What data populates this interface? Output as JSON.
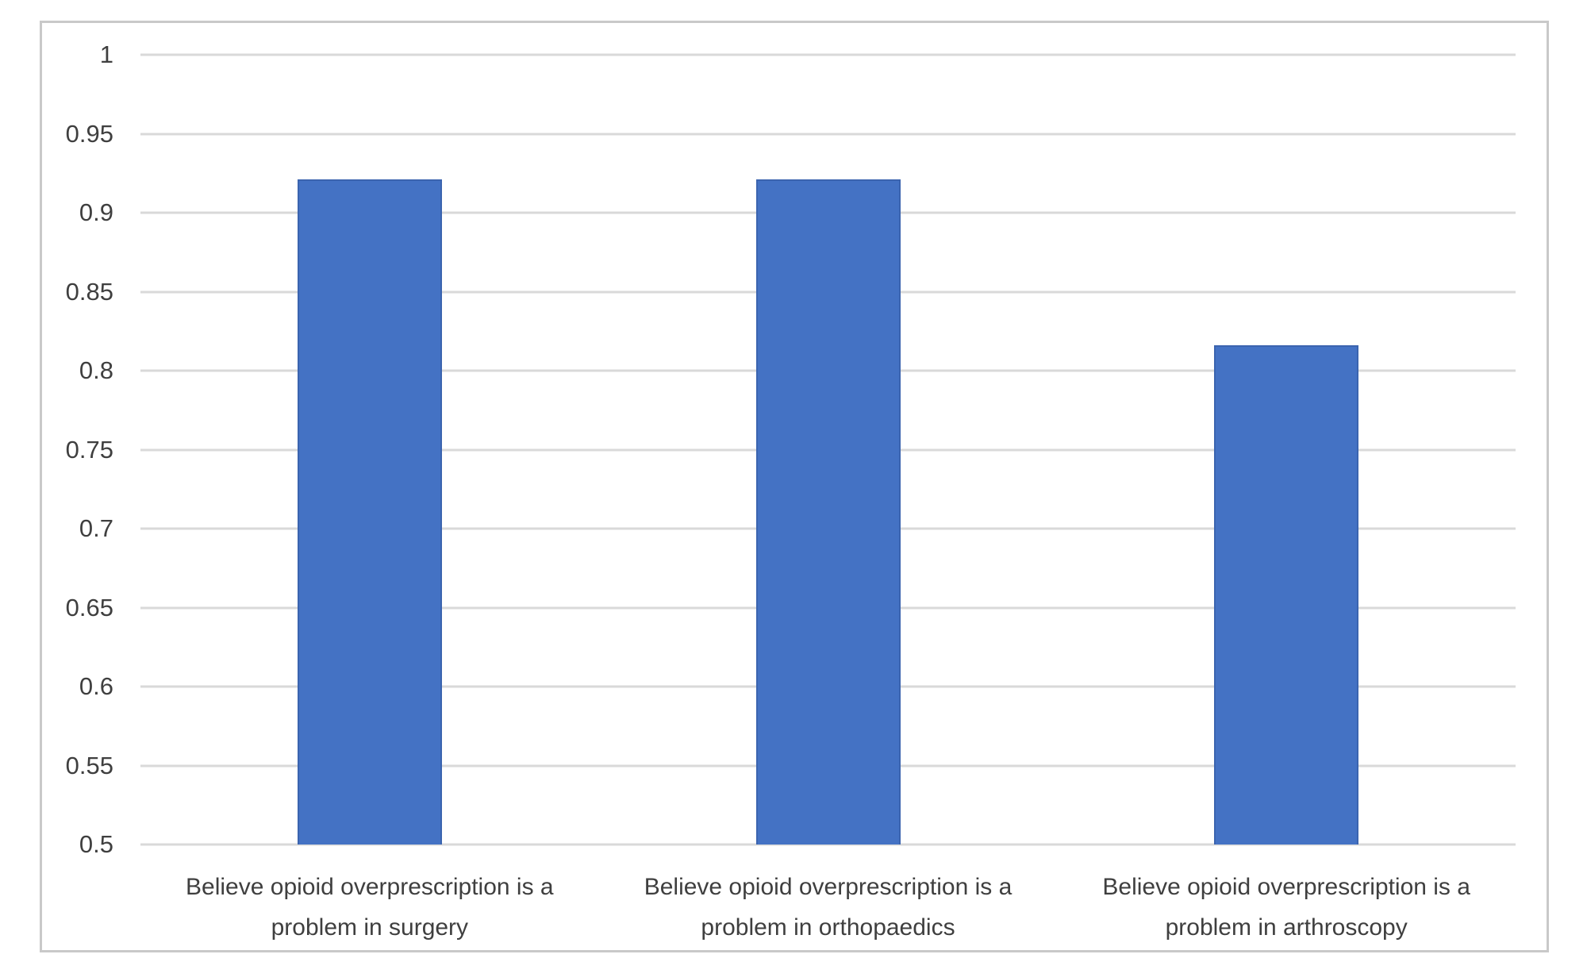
{
  "chart_data": {
    "type": "bar",
    "title": "",
    "xlabel": "",
    "ylabel": "",
    "categories": [
      "Believe opioid overprescription is a problem in surgery",
      "Believe opioid overprescription is a problem in orthopaedics",
      "Believe opioid overprescription is a problem in arthroscopy"
    ],
    "category_keys": [
      "surgery",
      "orthopaedics",
      "arthroscopy"
    ],
    "values": [
      0.921,
      0.921,
      0.816
    ],
    "ylim": [
      0.5,
      1.0
    ],
    "yticks": [
      1,
      0.95,
      0.9,
      0.85,
      0.8,
      0.75,
      0.7,
      0.65,
      0.6,
      0.55,
      0.5
    ],
    "ytick_labels": [
      "1",
      "0.95",
      "0.9",
      "0.85",
      "0.8",
      "0.75",
      "0.7",
      "0.65",
      "0.6",
      "0.55",
      "0.5"
    ],
    "grid": true,
    "legend": false,
    "colors": {
      "bar": "#4472C4",
      "gridline": "#d9d9d9",
      "frame_border": "#c9c9c9",
      "axis_text": "#3f3f3f",
      "background": "#ffffff"
    }
  }
}
